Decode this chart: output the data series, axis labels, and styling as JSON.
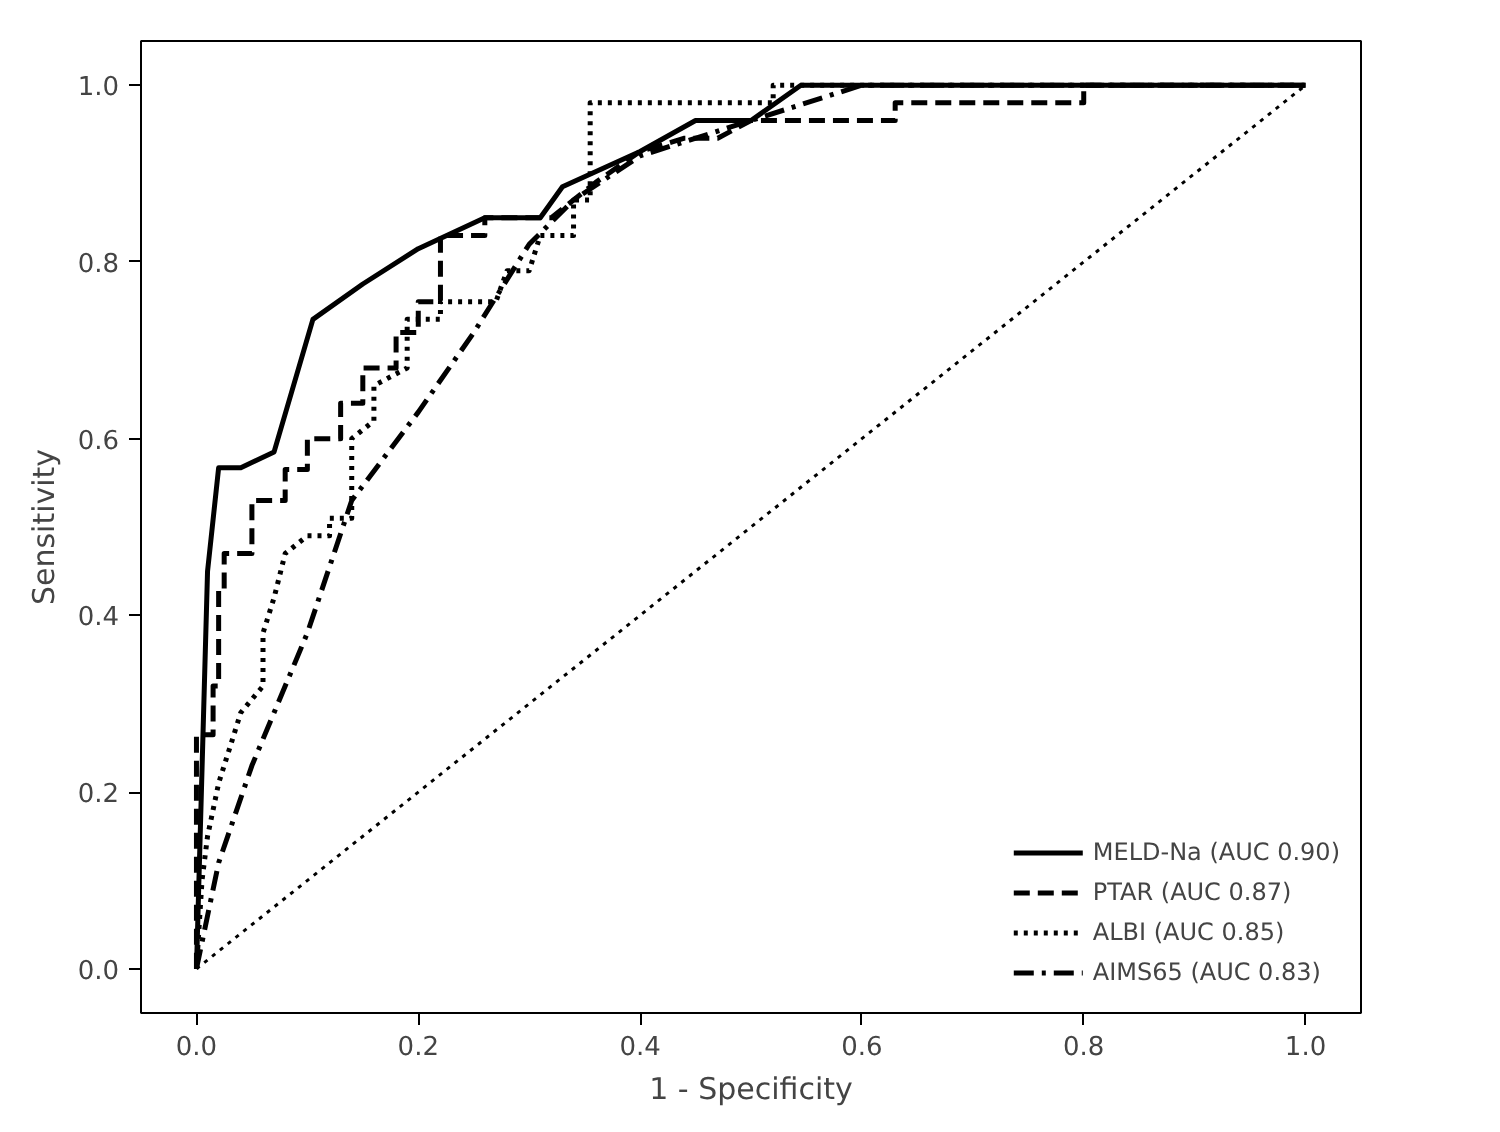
{
  "chart_data": {
    "type": "line",
    "xlabel": "1 - Specificity",
    "ylabel": "Sensitivity",
    "xlim": [
      -0.05,
      1.05
    ],
    "ylim": [
      -0.05,
      1.05
    ],
    "xticks": [
      {
        "value": 0,
        "label": "0.0"
      },
      {
        "value": 0.2,
        "label": "0.2"
      },
      {
        "value": 0.4,
        "label": "0.4"
      },
      {
        "value": 0.6,
        "label": "0.6"
      },
      {
        "value": 0.8,
        "label": "0.8"
      },
      {
        "value": 1,
        "label": "1.0"
      }
    ],
    "yticks": [
      {
        "value": 0,
        "label": "0.0"
      },
      {
        "value": 0.2,
        "label": "0.2"
      },
      {
        "value": 0.4,
        "label": "0.4"
      },
      {
        "value": 0.6,
        "label": "0.6"
      },
      {
        "value": 0.8,
        "label": "0.8"
      },
      {
        "value": 1,
        "label": "1.0"
      }
    ],
    "grid": false,
    "legend": "bottom right",
    "marker": "none",
    "series": [
      {
        "name": "MELD-Na (AUC 0.90)",
        "color": "#000000",
        "line_style": "solid",
        "x": [
          0,
          0.01,
          0.02,
          0.04,
          0.07,
          0.105,
          0.15,
          0.2,
          0.26,
          0.31,
          0.33,
          0.4,
          0.45,
          0.5,
          0.545,
          1
        ],
        "values": [
          0,
          0.45,
          0.567,
          0.567,
          0.585,
          0.735,
          0.775,
          0.815,
          0.85,
          0.85,
          0.885,
          0.925,
          0.96,
          0.96,
          1.0,
          1.0
        ]
      },
      {
        "name": "PTAR (AUC 0.87)",
        "color": "#000000",
        "line_style": "dashed",
        "x": [
          0,
          0,
          0.015,
          0.015,
          0.02,
          0.02,
          0.025,
          0.025,
          0.05,
          0.05,
          0.08,
          0.08,
          0.1,
          0.1,
          0.13,
          0.13,
          0.15,
          0.15,
          0.18,
          0.18,
          0.2,
          0.2,
          0.22,
          0.22,
          0.26,
          0.26,
          0.32,
          0.34,
          0.36,
          0.4,
          0.44,
          0.47,
          0.5,
          0.63,
          0.63,
          0.8,
          0.8,
          1
        ],
        "values": [
          0,
          0.265,
          0.265,
          0.32,
          0.32,
          0.43,
          0.43,
          0.47,
          0.47,
          0.53,
          0.53,
          0.565,
          0.565,
          0.6,
          0.6,
          0.64,
          0.64,
          0.68,
          0.68,
          0.72,
          0.72,
          0.755,
          0.755,
          0.83,
          0.83,
          0.85,
          0.85,
          0.87,
          0.89,
          0.925,
          0.94,
          0.94,
          0.96,
          0.96,
          0.98,
          0.98,
          1.0,
          1.0
        ]
      },
      {
        "name": "ALBI (AUC 0.85)",
        "color": "#000000",
        "line_style": "dotted",
        "x": [
          0,
          0.005,
          0.01,
          0.02,
          0.03,
          0.04,
          0.06,
          0.06,
          0.07,
          0.08,
          0.1,
          0.12,
          0.12,
          0.14,
          0.14,
          0.16,
          0.16,
          0.19,
          0.19,
          0.22,
          0.22,
          0.27,
          0.28,
          0.3,
          0.31,
          0.34,
          0.34,
          0.355,
          0.355,
          0.52,
          0.52,
          1
        ],
        "values": [
          0,
          0.1,
          0.15,
          0.21,
          0.25,
          0.29,
          0.32,
          0.38,
          0.42,
          0.47,
          0.49,
          0.49,
          0.51,
          0.51,
          0.6,
          0.62,
          0.66,
          0.68,
          0.735,
          0.735,
          0.755,
          0.755,
          0.79,
          0.79,
          0.83,
          0.83,
          0.87,
          0.87,
          0.98,
          0.98,
          1.0,
          1.0
        ]
      },
      {
        "name": "AIMS65 (AUC 0.83)",
        "color": "#000000",
        "line_style": "dashdot",
        "x": [
          0,
          0.02,
          0.05,
          0.1,
          0.14,
          0.2,
          0.25,
          0.3,
          0.34,
          0.4,
          0.5,
          0.6,
          1
        ],
        "values": [
          0,
          0.12,
          0.23,
          0.38,
          0.53,
          0.63,
          0.72,
          0.82,
          0.87,
          0.92,
          0.96,
          1.0,
          1.0
        ]
      },
      {
        "color": "#000000",
        "line_style": "dotted",
        "x": [
          0,
          1
        ],
        "values": [
          0,
          1
        ]
      }
    ]
  }
}
